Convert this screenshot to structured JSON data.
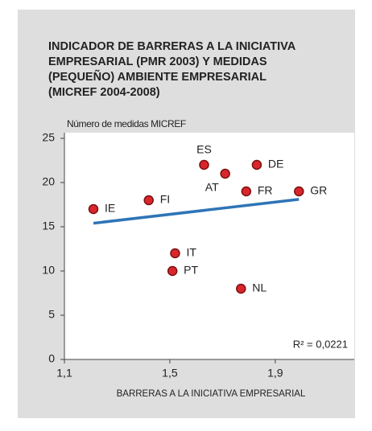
{
  "chart_data": {
    "type": "scatter",
    "title_lines": [
      "INDICADOR DE BARRERAS A LA INICIATIVA",
      "EMPRESARIAL (PMR 2003) Y MEDIDAS",
      "(PEQUEÑO) AMBIENTE EMPRESARIAL",
      "(MICREF 2004-2008)"
    ],
    "y_label": "Número de medidas MICREF",
    "x_label": "BARRERAS A LA INICIATIVA EMPRESARIAL",
    "annotation": "R² = 0,0221",
    "series": [
      {
        "color": "#d9262c",
        "labels": [
          "IE",
          "FI",
          "ES",
          "AT",
          "DE",
          "FR",
          "GR",
          "IT",
          "PT",
          "NL"
        ],
        "x": [
          1.21,
          1.42,
          1.63,
          1.71,
          1.83,
          1.79,
          1.99,
          1.52,
          1.51,
          1.77
        ],
        "values": [
          17,
          18,
          22,
          21,
          22,
          19,
          19,
          12,
          10,
          8
        ]
      }
    ],
    "trendline": {
      "color": "#2e75b6",
      "x": [
        1.21,
        1.99
      ],
      "values": [
        15.4,
        18.1
      ]
    },
    "xlim": [
      1.1,
      2.2
    ],
    "xticks": [
      {
        "value": 1.1,
        "label": "1,1"
      },
      {
        "value": 1.5,
        "label": "1,5"
      },
      {
        "value": 1.9,
        "label": "1,9"
      }
    ],
    "ylim": [
      0,
      25
    ],
    "yticks": [
      0,
      5,
      10,
      15,
      20,
      25
    ],
    "grid": false
  }
}
